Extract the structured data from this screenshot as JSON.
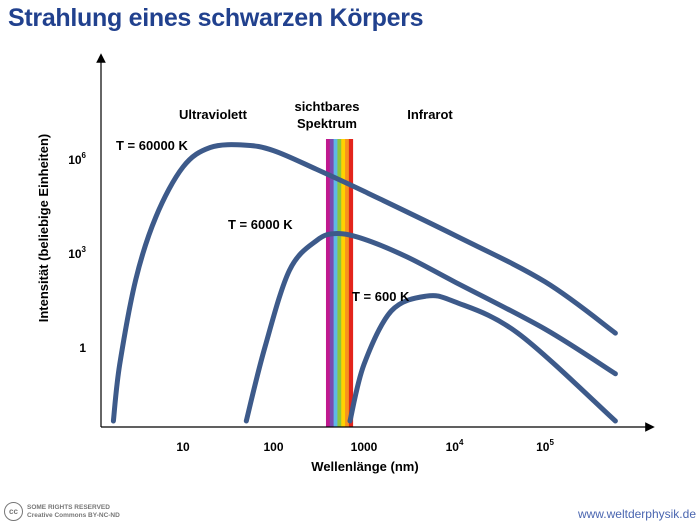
{
  "page": {
    "title": "Strahlung eines schwarzen Körpers",
    "license_line1": "SOME RIGHTS RESERVED",
    "license_line2": "Creative Commons BY-NC-ND",
    "license_icon": "cc-icon",
    "site": "www.weltderphysik.de"
  },
  "chart_data": {
    "type": "line",
    "title": "Strahlung eines schwarzen Körpers",
    "xlabel": "Wellenlänge (nm)",
    "ylabel": "Intensität (beliebige Einheiten)",
    "x_scale": "log",
    "y_scale": "log",
    "x_ticks": [
      {
        "value": 10,
        "label": "10"
      },
      {
        "value": 100,
        "label": "100"
      },
      {
        "value": 1000,
        "label": "1000"
      },
      {
        "value": 10000,
        "base": "10",
        "exp": "4"
      },
      {
        "value": 100000,
        "base": "10",
        "exp": "5"
      }
    ],
    "y_ticks": [
      {
        "value": 1000000,
        "base": "10",
        "exp": "6"
      },
      {
        "value": 1000,
        "base": "10",
        "exp": "3"
      },
      {
        "value": 1,
        "label": "1"
      }
    ],
    "regions": [
      {
        "label": "Ultraviolett"
      },
      {
        "label_line1": "sichtbares",
        "label_line2": "Spektrum"
      },
      {
        "label": "Infrarot"
      }
    ],
    "spectrum_colors": [
      "#c0198f",
      "#7a4bb0",
      "#5fb8e6",
      "#8cc63f",
      "#ffd200",
      "#f7941d",
      "#e3241c"
    ],
    "visible_range_nm": [
      380,
      750
    ],
    "line_color": "#3d5a8a",
    "series": [
      {
        "name": "T = 60000 K",
        "temperature": 60000,
        "x": [
          1.7,
          2,
          3,
          5,
          10,
          20,
          48,
          100,
          300,
          1000,
          10000,
          100000,
          600000
        ],
        "y": [
          1e-05,
          0.3,
          150,
          15000,
          600000,
          2500000,
          3000000,
          2000000,
          500000,
          100000,
          4000,
          130,
          3
        ]
      },
      {
        "name": "T = 6000 K",
        "temperature": 6000,
        "x": [
          50,
          80,
          150,
          300,
          500,
          1000,
          3000,
          10000,
          100000,
          600000
        ],
        "y": [
          1e-05,
          1,
          300,
          2700,
          4500,
          3000,
          800,
          130,
          4,
          0.15
        ]
      },
      {
        "name": "T = 600 K",
        "temperature": 600,
        "x": [
          700,
          1000,
          2000,
          4800,
          10000,
          50000,
          600000
        ],
        "y": [
          1e-05,
          0.3,
          15,
          45,
          30,
          3,
          2e-05
        ]
      }
    ]
  }
}
